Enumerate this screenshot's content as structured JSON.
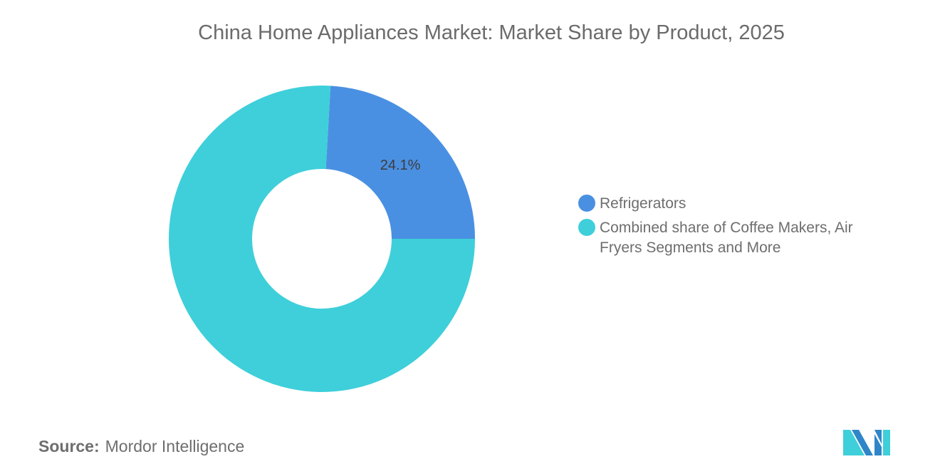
{
  "chart_data": {
    "type": "pie",
    "donut": true,
    "title": "China Home Appliances Market: Market Share by Product, 2025",
    "slices": [
      {
        "label": "Refrigerators",
        "value": 24.1,
        "data_label": "24.1%",
        "color": "#4A90E2"
      },
      {
        "label": "Combined share of Coffee Makers, Air Fryers Segments and More",
        "value": 75.9,
        "data_label": "",
        "color": "#3ECFDA"
      }
    ],
    "legend_placement": "right"
  },
  "source": {
    "label": "Source:",
    "value": "Mordor Intelligence"
  }
}
